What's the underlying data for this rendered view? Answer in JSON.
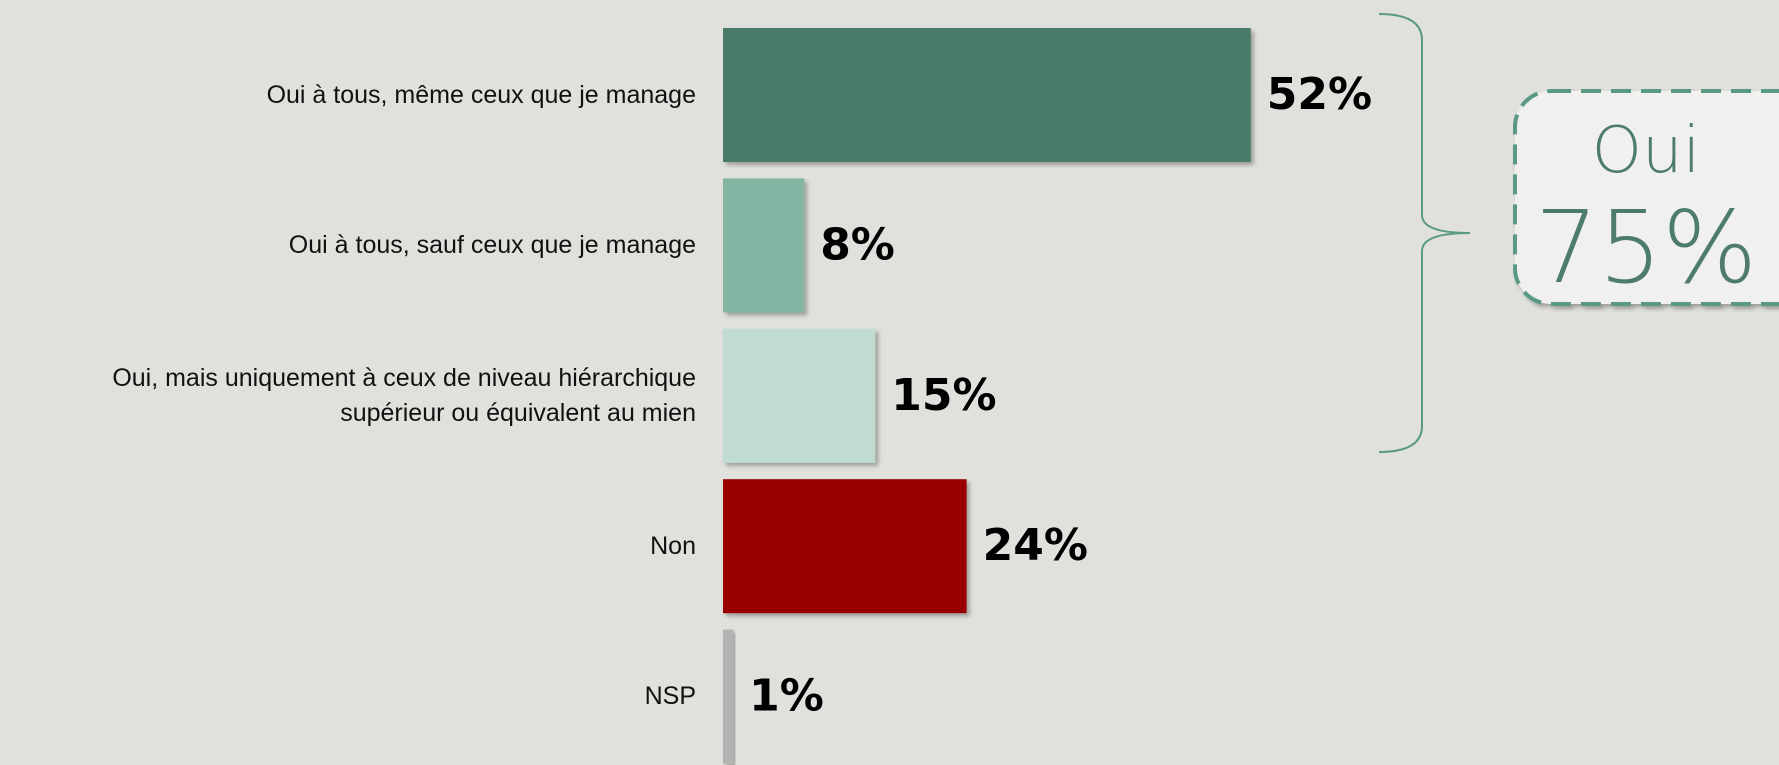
{
  "chart_data": {
    "type": "barh",
    "categories": [
      "Oui à tous, même ceux que je manage",
      "Oui à tous, sauf ceux que je manage",
      "Oui, mais uniquement à ceux de niveau hiérarchique\nsupérieur ou équivalent au mien",
      "Non",
      "NSP"
    ],
    "values": [
      52,
      8,
      15,
      24,
      1
    ],
    "value_labels": [
      "52%",
      "8%",
      "15%",
      "24%",
      "1%"
    ],
    "colors": [
      "#4a7a6a",
      "#82b6a2",
      "#c0dbd2",
      "#990000",
      "#b3b3b3"
    ],
    "xlim": [
      0,
      100
    ],
    "annotation": {
      "title": "Oui",
      "text": "75%"
    }
  }
}
